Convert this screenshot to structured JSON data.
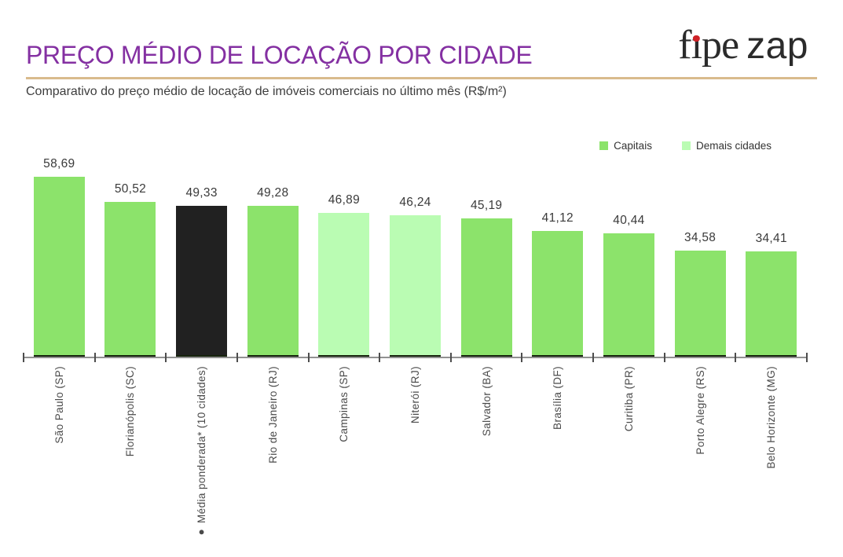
{
  "header": {
    "title": "PREÇO MÉDIO DE LOCAÇÃO POR CIDADE",
    "subtitle": "Comparativo do preço médio de locação de imóveis comerciais no último mês (R$/m²)",
    "logo": {
      "f": "f",
      "i": "ı",
      "pe": "pe",
      "zap": "zap"
    }
  },
  "chart_data": {
    "type": "bar",
    "title": "PREÇO MÉDIO DE LOCAÇÃO POR CIDADE",
    "subtitle": "Comparativo do preço médio de locação de imóveis comerciais no último mês (R$/m²)",
    "unit": "R$/m²",
    "categories": [
      "São Paulo (SP)",
      "Florianópolis (SC)",
      "● Média ponderada* (10 cidades)",
      "Rio de Janeiro (RJ)",
      "Campinas (SP)",
      "Niterói (RJ)",
      "Salvador (BA)",
      "Brasília (DF)",
      "Curitiba (PR)",
      "Porto Alegre (RS)",
      "Belo Horizonte (MG)"
    ],
    "values": [
      58.69,
      50.52,
      49.33,
      49.28,
      46.89,
      46.24,
      45.19,
      41.12,
      40.44,
      34.58,
      34.41
    ],
    "value_labels": [
      "58,69",
      "50,52",
      "49,33",
      "49,28",
      "46,89",
      "46,24",
      "45,19",
      "41,12",
      "40,44",
      "34,58",
      "34,41"
    ],
    "bar_types": [
      "capital",
      "capital",
      "average",
      "capital",
      "other",
      "other",
      "capital",
      "capital",
      "capital",
      "capital",
      "capital"
    ],
    "bar_colors": {
      "capital": "#8ce36b",
      "other": "#bafcb3",
      "average": "#212121"
    },
    "legend": [
      {
        "label": "Capitais",
        "type": "capital"
      },
      {
        "label": "Demais cidades",
        "type": "other"
      }
    ],
    "legend_position": "top-right",
    "ylim": [
      0,
      60
    ],
    "grid": false,
    "y_axis_visible": false
  },
  "colors": {
    "title": "#8430a2",
    "separator": "#d9bb8d",
    "subtitle_text": "#3d3d3d",
    "axis_line": "#919191",
    "tick": "#4d4d4d",
    "bar_base_edge": "#16230d",
    "logo_text": "#2b2b2b",
    "logo_dot": "#ce2127"
  }
}
